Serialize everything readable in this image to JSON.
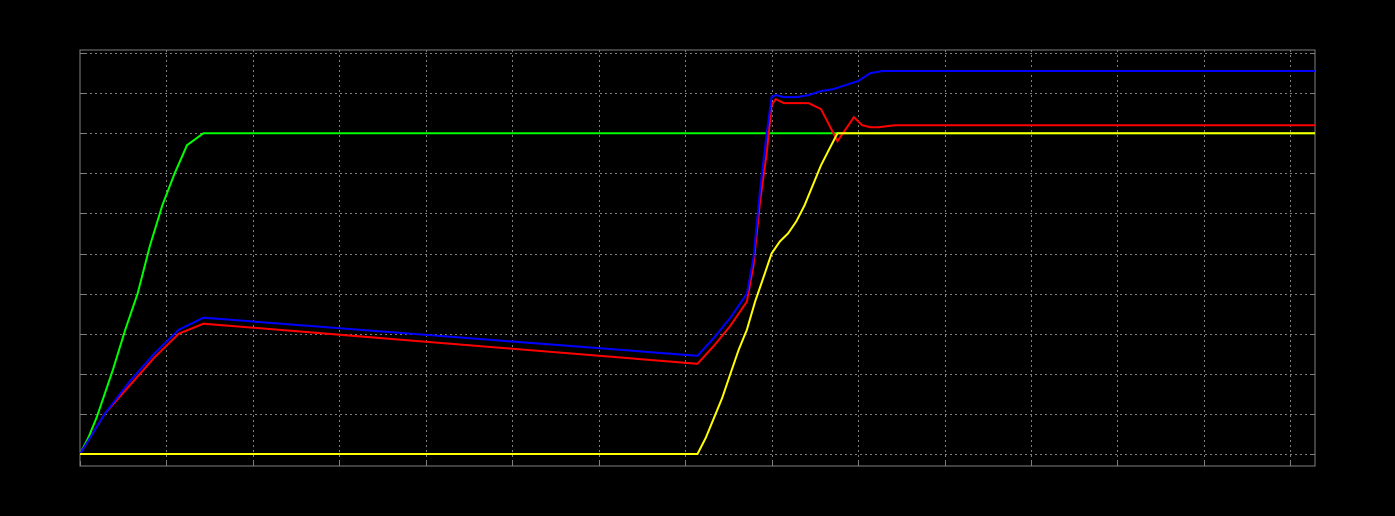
{
  "chart_data": {
    "type": "line",
    "title": "",
    "xlabel": "",
    "ylabel": "",
    "xlim": [
      0,
      1500
    ],
    "ylim": [
      0,
      100
    ],
    "x_ticks": [
      0,
      105,
      210,
      315,
      420,
      525,
      630,
      735,
      840,
      945,
      1050,
      1155,
      1260,
      1365,
      1470
    ],
    "y_ticks": [
      0,
      10,
      20,
      30,
      40,
      50,
      60,
      70,
      80,
      90,
      100
    ],
    "grid": true,
    "colors": {
      "background": "#000000",
      "frame": "#7f7f7f",
      "grid": "#7f7f7f",
      "green": "#00ff00",
      "red": "#ff0000",
      "blue": "#0000ff",
      "yellow": "#ffff00"
    },
    "series": [
      {
        "color": "#00ff00",
        "x": [
          0,
          10,
          20,
          30,
          40,
          55,
          70,
          85,
          100,
          115,
          130,
          150,
          1500
        ],
        "y": [
          0,
          4,
          9,
          15,
          21,
          31,
          40,
          52,
          62,
          70,
          77,
          80,
          80
        ]
      },
      {
        "color": "#ff0000",
        "x": [
          0,
          30,
          60,
          90,
          120,
          150,
          750,
          770,
          790,
          810,
          818,
          826,
          834,
          840,
          845,
          855,
          870,
          885,
          900,
          920,
          940,
          945,
          950,
          960,
          970,
          990,
          1010,
          1030,
          1500
        ],
        "y": [
          0,
          10,
          17,
          24,
          30,
          32.5,
          22.5,
          27,
          32,
          38,
          47,
          63,
          75,
          87,
          88.5,
          87.5,
          87.5,
          87.5,
          86,
          78,
          84,
          83,
          82,
          81.5,
          81.5,
          82,
          82,
          82,
          82
        ]
      },
      {
        "color": "#0000ff",
        "x": [
          0,
          30,
          60,
          90,
          120,
          150,
          750,
          770,
          790,
          810,
          818,
          826,
          834,
          840,
          845,
          855,
          870,
          885,
          900,
          915,
          930,
          945,
          960,
          975,
          990,
          1010,
          1500
        ],
        "y": [
          0,
          10,
          18,
          25,
          31,
          34,
          24.5,
          29,
          34,
          40,
          49,
          66,
          80,
          89,
          89.5,
          89,
          89,
          89.5,
          90.5,
          91,
          92,
          93,
          95,
          95.5,
          95.5,
          95.5,
          95.5
        ]
      },
      {
        "color": "#ffff00",
        "x": [
          0,
          750,
          760,
          770,
          780,
          790,
          800,
          810,
          820,
          830,
          840,
          850,
          860,
          870,
          880,
          890,
          900,
          910,
          920,
          940,
          1500
        ],
        "y": [
          0,
          0,
          4,
          9,
          14,
          20,
          26,
          31,
          38,
          44,
          50,
          53,
          55,
          58,
          62,
          67,
          72,
          76,
          80,
          80,
          80
        ]
      }
    ]
  }
}
